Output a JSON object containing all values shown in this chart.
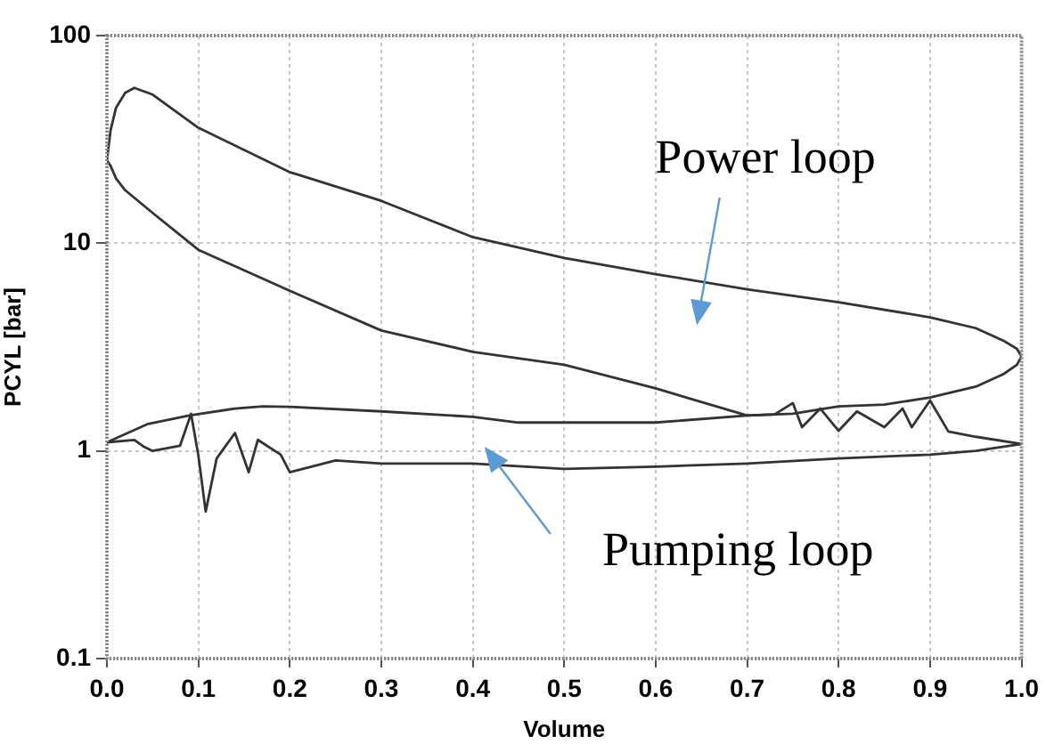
{
  "chart_data": {
    "type": "line",
    "xlabel": "Volume",
    "ylabel": "PCYL [bar]",
    "log": "y",
    "grid": true,
    "marker": "none",
    "line_style": "solid",
    "legend": false,
    "xlim": [
      0,
      1
    ],
    "ylim": [
      0.1,
      100
    ],
    "xticks": [
      {
        "value": 0,
        "label": "0.0"
      },
      0.1,
      0.2,
      0.3,
      0.4,
      0.5,
      0.6,
      0.7,
      0.8,
      0.9,
      {
        "value": 1,
        "label": "1.0"
      }
    ],
    "yticks": [
      0.1,
      1,
      10,
      100
    ],
    "series": [
      {
        "color": "#333333",
        "x": [
          0.0,
          0.004,
          0.01,
          0.02,
          0.03,
          0.05,
          0.1,
          0.2,
          0.3,
          0.4,
          0.5,
          0.6,
          0.7,
          0.8,
          0.9,
          0.95,
          0.98,
          0.995,
          1.0
        ],
        "values": [
          25,
          35,
          45,
          53,
          56,
          52,
          36,
          22,
          16,
          10.7,
          8.5,
          7.1,
          6.0,
          5.2,
          4.4,
          3.9,
          3.4,
          3.1,
          2.85
        ]
      },
      {
        "color": "#333333",
        "x": [
          0.0,
          0.004,
          0.01,
          0.02,
          0.05,
          0.1,
          0.2,
          0.3,
          0.4,
          0.5,
          0.6,
          0.7,
          0.75,
          0.8,
          0.85,
          0.9,
          0.95,
          0.98,
          0.995,
          1.0
        ],
        "values": [
          25,
          23.6,
          20.5,
          18,
          14,
          9.3,
          5.9,
          3.8,
          3.0,
          2.6,
          2.0,
          1.48,
          1.51,
          1.64,
          1.67,
          1.81,
          2.04,
          2.34,
          2.6,
          2.85
        ]
      },
      {
        "color": "#333333",
        "x": [
          0.0,
          0.045,
          0.09,
          0.14,
          0.17,
          0.2,
          0.3,
          0.4,
          0.45,
          0.5,
          0.6,
          0.7,
          0.73,
          0.75,
          0.76,
          0.78,
          0.8,
          0.82,
          0.85,
          0.87,
          0.88,
          0.9,
          0.92,
          0.95,
          1.0
        ],
        "values": [
          1.1,
          1.35,
          1.48,
          1.6,
          1.64,
          1.63,
          1.55,
          1.46,
          1.37,
          1.37,
          1.37,
          1.48,
          1.5,
          1.7,
          1.3,
          1.6,
          1.25,
          1.55,
          1.3,
          1.6,
          1.3,
          1.75,
          1.24,
          1.17,
          1.08
        ]
      },
      {
        "color": "#333333",
        "x": [
          0.0,
          0.03,
          0.04,
          0.05,
          0.08,
          0.092,
          0.1,
          0.108,
          0.12,
          0.14,
          0.155,
          0.165,
          0.19,
          0.2,
          0.25,
          0.3,
          0.35,
          0.4,
          0.5,
          0.6,
          0.7,
          0.8,
          0.9,
          0.95,
          1.0
        ],
        "values": [
          1.1,
          1.13,
          1.05,
          1.0,
          1.06,
          1.51,
          0.95,
          0.51,
          0.92,
          1.22,
          0.79,
          1.13,
          0.96,
          0.79,
          0.9,
          0.87,
          0.87,
          0.87,
          0.82,
          0.84,
          0.87,
          0.92,
          0.96,
          1.0,
          1.08
        ]
      }
    ],
    "annotations": [
      "Power loop",
      "Pumping loop"
    ]
  }
}
